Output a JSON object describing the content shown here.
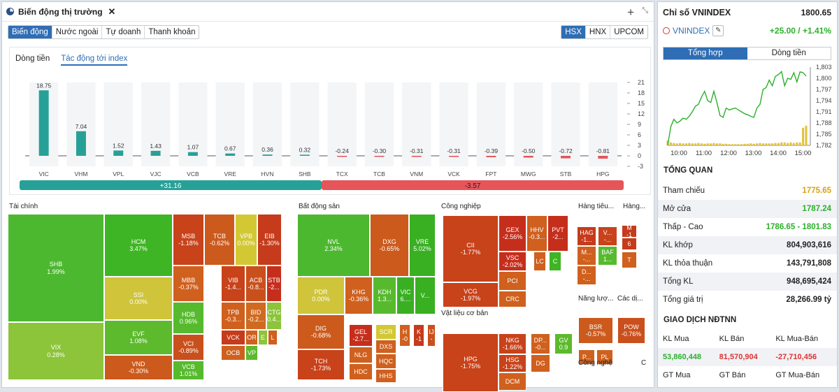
{
  "header": {
    "title": "Biến động thị trường"
  },
  "tabs": [
    "Biến động",
    "Nước ngoài",
    "Tự doanh",
    "Thanh khoản"
  ],
  "exchanges": [
    "HSX",
    "HNX",
    "UPCOM"
  ],
  "chart_tabs": [
    "Dòng tiền",
    "Tác động tới index"
  ],
  "chart_data": {
    "type": "bar",
    "title": "Tác động tới index",
    "categories": [
      "VIC",
      "VHM",
      "VPL",
      "VJC",
      "VCB",
      "VRE",
      "HVN",
      "SHB",
      "TCX",
      "TCB",
      "VNM",
      "VCK",
      "FPT",
      "MWG",
      "STB",
      "HPG"
    ],
    "values": [
      18.75,
      7.04,
      1.52,
      1.43,
      1.07,
      0.67,
      0.36,
      0.32,
      -0.24,
      -0.3,
      -0.31,
      -0.31,
      -0.39,
      -0.5,
      -0.72,
      -0.81
    ],
    "labels": [
      "18.75",
      "7.04",
      "1.52",
      "1.43",
      "1.07",
      "0.67",
      "0.36",
      "0.32",
      "-0.24",
      "-0.30",
      "-0.31",
      "-0.31",
      "-0.39",
      "-0.50",
      "-0.72",
      "-0.81"
    ],
    "yticks": [
      "21",
      "18",
      "15",
      "12",
      "9",
      "6",
      "3",
      "0",
      "-3"
    ],
    "ylim": [
      -3,
      21
    ],
    "positive_total": "+31.16",
    "negative_total": "-3.57",
    "positive_color": "#27a197",
    "negative_color": "#e5555a"
  },
  "treemap": {
    "sectors": [
      {
        "name": "Tài chính",
        "cells": [
          [
            "SHB",
            "1.99%",
            "#4cb82f"
          ],
          [
            "VIX",
            "0.28%",
            "#8cc43a"
          ],
          [
            "HCM",
            "3.47%",
            "#3eb524"
          ],
          [
            "SSI",
            "0.00%",
            "#cfc43a"
          ],
          [
            "EVF",
            "1.08%",
            "#5cba2c"
          ],
          [
            "VND",
            "-0.30%",
            "#cc5a1c"
          ],
          [
            "MSB",
            "-1.18%",
            "#c8421a"
          ],
          [
            "TCB",
            "-0.62%",
            "#cc5a1c"
          ],
          [
            "VPB",
            "0.00%",
            "#d2c833"
          ],
          [
            "EIB",
            "-1.30%",
            "#c53b1b"
          ],
          [
            "MBB",
            "-0.37%",
            "#cf601e"
          ],
          [
            "VIB",
            "-1.4...",
            "#c8421a"
          ],
          [
            "ACB",
            "-0.8...",
            "#c9501c"
          ],
          [
            "STB",
            "-2...",
            "#c62e1c"
          ],
          [
            "HDB",
            "0.96%",
            "#57ba2e"
          ],
          [
            "TPB",
            "-0.3...",
            "#cf601e"
          ],
          [
            "BID",
            "-0.2...",
            "#d06a20"
          ],
          [
            "CTG",
            "0.4...",
            "#8cc43a"
          ],
          [
            "VCI",
            "-0.89%",
            "#c9501c"
          ],
          [
            "VCK",
            "",
            "#c53b1b"
          ],
          [
            "OR",
            "",
            "#cf601e"
          ],
          [
            "E",
            "",
            "#8cc43a"
          ],
          [
            "L",
            "",
            "#cf601e"
          ],
          [
            "VCB",
            "1.01%",
            "#57ba2e"
          ],
          [
            "OCB",
            "",
            "#cf601e"
          ],
          [
            "VP",
            "",
            "#5cba2c"
          ]
        ]
      },
      {
        "name": "Bất động sản",
        "cells": [
          [
            "NVL",
            "2.34%",
            "#4cb82f"
          ],
          [
            "DXG",
            "-0.65%",
            "#cc5a1c"
          ],
          [
            "VRE",
            "5.02%",
            "#38b022"
          ],
          [
            "PDR",
            "0.00%",
            "#cfc43a"
          ],
          [
            "KHG",
            "-0.36%",
            "#cf601e"
          ],
          [
            "KDH",
            "1.3...",
            "#57ba2e"
          ],
          [
            "VIC",
            "6....",
            "#38b022"
          ],
          [
            "V...",
            "",
            "#38b022"
          ],
          [
            "DIG",
            "-0.68%",
            "#cc5a1c"
          ],
          [
            "GEL",
            "-2.7...",
            "#c62e1c"
          ],
          [
            "SCR",
            "",
            "#d2c833"
          ],
          [
            "H",
            "-0",
            "#cf601e"
          ],
          [
            "K",
            "-1",
            "#c53b1b"
          ],
          [
            "IJ",
            "-",
            "#c9501c"
          ],
          [
            "NLG",
            "",
            "#cf601e"
          ],
          [
            "DXS",
            "",
            "#cf601e"
          ],
          [
            "HQC",
            "",
            "#cf601e"
          ],
          [
            "TCH",
            "-1.73%",
            "#c8421a"
          ],
          [
            "HDC",
            "",
            "#cf601e"
          ],
          [
            "HHS",
            "",
            "#cf601e"
          ]
        ]
      },
      {
        "name": "Công nghiệp",
        "cells": [
          [
            "CII",
            "-1.77%",
            "#c8421a"
          ],
          [
            "GEX",
            "-2.56%",
            "#c62e1c"
          ],
          [
            "HHV",
            "-0.3...",
            "#cf601e"
          ],
          [
            "PVT",
            "-2...",
            "#c62e1c"
          ],
          [
            "VSC",
            "-2.02%",
            "#c62e1c"
          ],
          [
            "LC",
            "",
            "#cf601e"
          ],
          [
            "C",
            "",
            "#3eb524"
          ],
          [
            "PCI",
            "",
            "#cf601e"
          ],
          [
            "CRC",
            "",
            "#cf601e"
          ],
          [
            "VCG",
            "-1.97%",
            "#c8421a"
          ]
        ]
      },
      {
        "name": "Vật liệu cơ bản",
        "cells": [
          [
            "HPG",
            "-1.75%",
            "#c8421a"
          ],
          [
            "NKG",
            "-1.66%",
            "#c8421a"
          ],
          [
            "DP...",
            "-0...",
            "#cf601e"
          ],
          [
            "GV",
            "0.9",
            "#5cba2c"
          ],
          [
            "HSG",
            "-1.22%",
            "#c8421a"
          ],
          [
            "DG",
            "",
            "#cf601e"
          ],
          [
            "DCM",
            "",
            "#cf601e"
          ]
        ]
      },
      {
        "name": "Hàng tiêu...",
        "cells": [
          [
            "HAG",
            "-1...",
            "#c53b1b"
          ],
          [
            "V...",
            "-...",
            "#c8421a"
          ],
          [
            "M...",
            "-...",
            "#cf601e"
          ],
          [
            "BAF",
            "1...",
            "#57ba2e"
          ],
          [
            "D...",
            "-...",
            "#cf601e"
          ]
        ]
      },
      {
        "name": "Hàng...",
        "cells": [
          [
            "M",
            "-1",
            "#c53b1b"
          ],
          [
            "6",
            "",
            "#c53b1b"
          ],
          [
            "T",
            "",
            "#cf601e"
          ]
        ]
      },
      {
        "name": "Năng lượ...",
        "cells": [
          [
            "BSR",
            "-0.57%",
            "#cc5a1c"
          ],
          [
            "P...",
            "",
            "#cf601e"
          ],
          [
            "PL",
            "",
            "#cf601e"
          ]
        ]
      },
      {
        "name": "Các dị...",
        "cells": [
          [
            "POW",
            "-0.76%",
            "#c9501c"
          ]
        ]
      },
      {
        "name": "Công nghệ",
        "cells": []
      },
      {
        "name": "C",
        "cells": []
      }
    ]
  },
  "index": {
    "title": "Chỉ số VNINDEX",
    "value": "1800.65",
    "name": "VNINDEX",
    "change": "+25.00 / +1.41%",
    "tabs": [
      "Tổng hợp",
      "Dòng tiền"
    ],
    "yticks": [
      "1,803",
      "1,800",
      "1,797",
      "1,794",
      "1,791",
      "1,788",
      "1,785",
      "1,782"
    ],
    "xticks": [
      "10:00",
      "11:00",
      "12:00",
      "13:00",
      "14:00",
      "15:00"
    ],
    "line_color": "#2bb02b",
    "price_series": [
      1782,
      1787,
      1789,
      1788,
      1788.5,
      1789.3,
      1789,
      1789.8,
      1791,
      1792.5,
      1793,
      1795,
      1796.5,
      1794,
      1793.5,
      1796.5,
      1793.5,
      1790,
      1789.5,
      1792,
      1791.5,
      1791.8,
      1792,
      1791.5,
      1791,
      1790.5,
      1790.2,
      1789.8,
      1789.5,
      1792,
      1793,
      1797,
      1797.5,
      1799.5,
      1798,
      1800.5,
      1801,
      1801.8,
      1798,
      1800,
      1799.7,
      1801.5,
      1799,
      1801.7,
      1801.5,
      1800.6
    ],
    "volume_series": [
      0.25,
      0.15,
      0.12,
      0.1,
      0.12,
      0.1,
      0.1,
      0.12,
      0.1,
      0.1,
      0.12,
      0.1,
      0.08,
      0.1,
      0.1,
      0.12,
      0.1,
      0.1,
      0.08,
      0.08,
      0.06,
      0.06,
      0.06,
      0.06,
      0.06,
      0.08,
      0.08,
      0.1,
      0.08,
      0.1,
      0.12,
      0.1,
      0.1,
      0.1,
      0.1,
      0.12,
      0.12,
      0.15,
      0.15,
      0.12,
      0.15,
      0.12,
      0.15,
      0.15,
      0.9,
      1
    ]
  },
  "overview": {
    "title": "TỔNG QUAN",
    "rows": [
      {
        "label": "Tham chiếu",
        "value": "1775.65",
        "color": "#d7a20e"
      },
      {
        "label": "Mở cửa",
        "value": "1787.24",
        "color": "#2bb02b"
      },
      {
        "label": "Thấp - Cao",
        "value": "1786.65 - 1801.83",
        "color": "#2bb02b"
      },
      {
        "label": "KL khớp",
        "value": "804,903,616",
        "color": "#222"
      },
      {
        "label": "KL thỏa thuận",
        "value": "143,791,808",
        "color": "#222"
      },
      {
        "label": "Tổng KL",
        "value": "948,695,424",
        "color": "#222"
      },
      {
        "label": "Tổng giá trị",
        "value": "28,266.99 tỷ",
        "color": "#222"
      }
    ]
  },
  "foreign": {
    "title": "GIAO DỊCH NĐTNN",
    "headers": [
      "KL Mua",
      "KL Bán",
      "KL Mua-Bán"
    ],
    "values": [
      "53,860,448",
      "81,570,904",
      "-27,710,456"
    ],
    "headers2": [
      "GT Mua",
      "GT Bán",
      "GT Mua-Bán"
    ]
  }
}
